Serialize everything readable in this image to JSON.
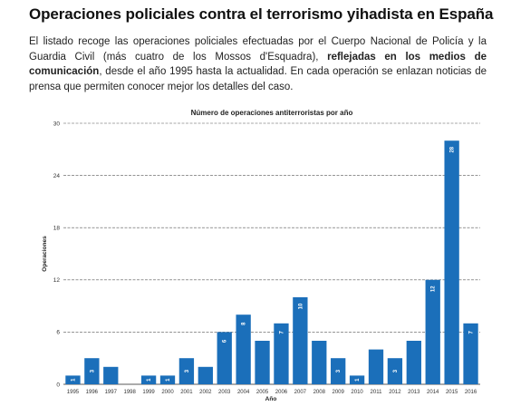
{
  "header": {
    "title": "Operaciones policiales contra el terrorismo yihadista en España"
  },
  "intro": {
    "part1": "El listado recoge las operaciones policiales efectuadas por el Cuerpo Nacional de Policía y la Guardia Civil (más cuatro de los Mossos d'Esquadra), ",
    "bold": "reflejadas en los medios de comunicación",
    "part2": ", desde el año 1995 hasta la actualidad. En cada operación se enlazan noticias de prensa que permiten conocer mejor los detalles del caso."
  },
  "colors": {
    "bar": "#1b6fba",
    "grid": "#555555"
  },
  "chart_data": {
    "type": "bar",
    "title": "Número de operaciones antiterroristas por año",
    "xlabel": "Año",
    "ylabel": "Operaciones",
    "ylim": [
      0,
      30
    ],
    "yticks": [
      0,
      6,
      12,
      18,
      24,
      30
    ],
    "grid": true,
    "categories": [
      "1995",
      "1996",
      "1997",
      "1998",
      "1999",
      "2000",
      "2001",
      "2002",
      "2003",
      "2004",
      "2005",
      "2006",
      "2007",
      "2008",
      "2009",
      "2010",
      "2011",
      "2012",
      "2013",
      "2014",
      "2015",
      "2016"
    ],
    "values": [
      1,
      3,
      2,
      0,
      1,
      1,
      3,
      2,
      6,
      8,
      5,
      7,
      10,
      5,
      3,
      1,
      4,
      3,
      5,
      12,
      28,
      7
    ],
    "bar_labels": [
      "1",
      "3",
      "",
      "",
      "1",
      "1",
      "3",
      "",
      "6",
      "8",
      "",
      "7",
      "10",
      "",
      "3",
      "1",
      "",
      "3",
      "",
      "12",
      "28",
      "7"
    ]
  }
}
